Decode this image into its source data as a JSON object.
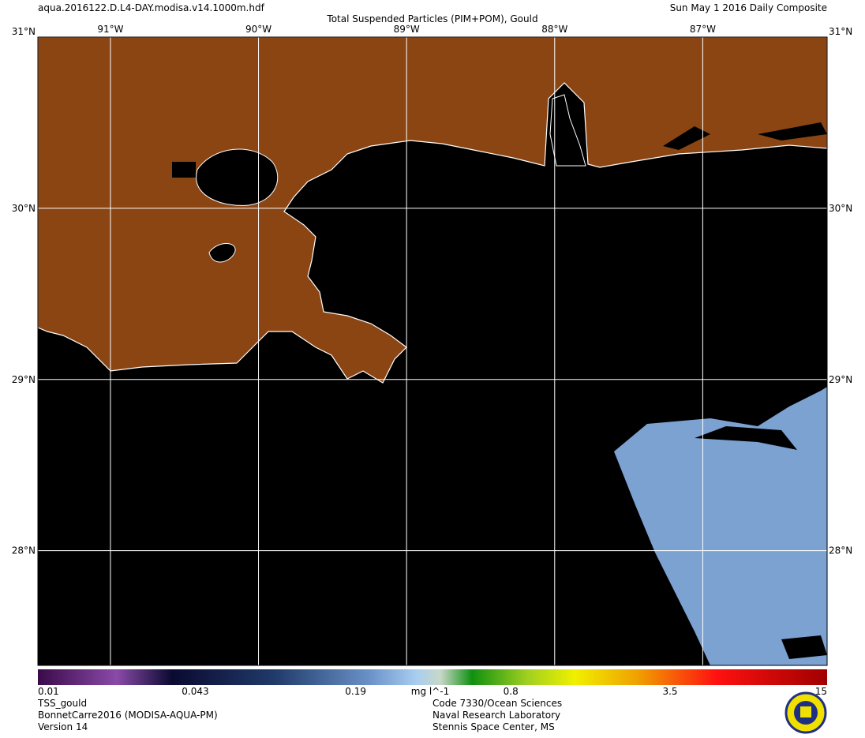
{
  "header": {
    "file": "aqua.2016122.D.L4-DAY.modisa.v14.1000m.hdf",
    "title": "Total Suspended Particles (PIM+POM), Gould",
    "date": "Sun May  1 2016 Daily Composite"
  },
  "map": {
    "lonlim": [
      -91.49,
      -86.16
    ],
    "latlim": [
      27.33,
      31.0
    ],
    "lonticks": [
      {
        "value": -91,
        "label": "91°W"
      },
      {
        "value": -90,
        "label": "90°W"
      },
      {
        "value": -89,
        "label": "89°W"
      },
      {
        "value": -88,
        "label": "88°W"
      },
      {
        "value": -87,
        "label": "87°W"
      }
    ],
    "latticks": [
      {
        "value": 31,
        "label": "31°N"
      },
      {
        "value": 30,
        "label": "30°N"
      },
      {
        "value": 29,
        "label": "29°N"
      },
      {
        "value": 28,
        "label": "28°N"
      }
    ]
  },
  "colorbar": {
    "range": [
      0.01,
      15
    ],
    "log": true,
    "ticks": [
      0.01,
      0.043,
      0.19,
      0.8,
      3.5,
      15
    ],
    "unit": "mg l^-1"
  },
  "footer": {
    "left": [
      "TSS_gould",
      "BonnetCarre2016 (MODISA-AQUA-PM)",
      "Version 14"
    ],
    "center": [
      "Code 7330/Ocean Sciences",
      "Naval Research Laboratory",
      "Stennis Space Center, MS"
    ]
  }
}
